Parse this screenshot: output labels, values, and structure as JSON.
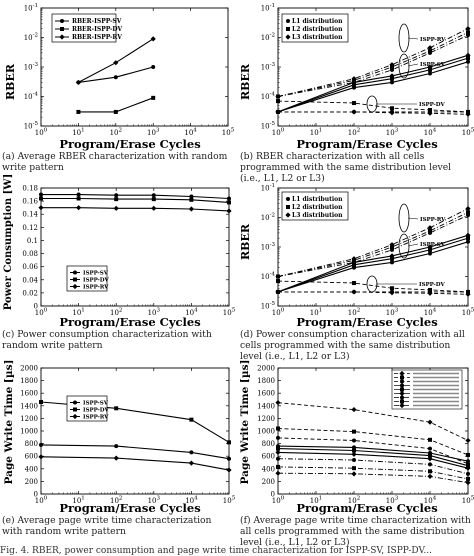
{
  "chart_data": [
    {
      "id": "a",
      "type": "line",
      "xscale": "log",
      "yscale": "log",
      "xlim": [
        1,
        100000
      ],
      "ylim": [
        1e-05,
        0.1
      ],
      "xticks": [
        "10^0",
        "10^1",
        "10^2",
        "10^3",
        "10^4",
        "10^5"
      ],
      "yticks": [
        "10^-5",
        "10^-4",
        "10^-3",
        "10^-2",
        "10^-1"
      ],
      "ylabel": "RBER",
      "xlabel": "Program/Erase Cycles",
      "legend": [
        "RBER-ISPP-SV",
        "RBER-ISPP-DV",
        "RBER-ISPP-RV"
      ],
      "legend_position": "top-left",
      "series": [
        {
          "name": "RBER-ISPP-SV",
          "marker": "circle",
          "x": [
            10,
            100,
            1000
          ],
          "y": [
            0.0003,
            0.00045,
            0.001
          ]
        },
        {
          "name": "RBER-ISPP-DV",
          "marker": "square",
          "x": [
            10,
            100,
            1000
          ],
          "y": [
            3e-05,
            3e-05,
            9e-05
          ]
        },
        {
          "name": "RBER-ISPP-RV",
          "marker": "diamond",
          "x": [
            10,
            100,
            1000
          ],
          "y": [
            0.0003,
            0.0014,
            0.009
          ]
        }
      ],
      "caption": "(a) Average RBER characterization with random write pattern"
    },
    {
      "id": "b",
      "type": "line",
      "xscale": "log",
      "yscale": "log",
      "xlim": [
        1,
        100000
      ],
      "ylim": [
        1e-05,
        0.1
      ],
      "xticks": [
        "10^0",
        "10^1",
        "10^2",
        "10^3",
        "10^4",
        "10^5"
      ],
      "yticks": [
        "10^-5",
        "10^-4",
        "10^-3",
        "10^-2",
        "10^-1"
      ],
      "ylabel": "RBER",
      "xlabel": "Program/Erase Cycles",
      "legend": [
        "L1 distribution",
        "L2 distribution",
        "L3 distribution"
      ],
      "legend_position": "top-left",
      "annotations": [
        "ISPP-RV",
        "ISPP-SV",
        "ISPP-DV"
      ],
      "series": [
        {
          "name": "L1 distribution",
          "group": "ISPP-RV",
          "style": "dashdot",
          "marker": "circle",
          "x": [
            1,
            100,
            1000,
            10000,
            100000
          ],
          "y": [
            0.0001,
            0.0003,
            0.0008,
            0.003,
            0.012
          ]
        },
        {
          "name": "L2 distribution",
          "group": "ISPP-RV",
          "style": "dashdot",
          "marker": "square",
          "x": [
            1,
            100,
            1000,
            10000,
            100000
          ],
          "y": [
            0.0001,
            0.00035,
            0.001,
            0.0035,
            0.015
          ]
        },
        {
          "name": "L3 distribution",
          "group": "ISPP-RV",
          "style": "dashdot",
          "marker": "diamond",
          "x": [
            1,
            100,
            1000,
            10000,
            100000
          ],
          "y": [
            0.0001,
            0.0004,
            0.0012,
            0.0045,
            0.02
          ]
        },
        {
          "name": "L1 distribution",
          "group": "ISPP-SV",
          "style": "solid",
          "marker": "circle",
          "x": [
            1,
            100,
            1000,
            10000,
            100000
          ],
          "y": [
            3e-05,
            0.0002,
            0.0003,
            0.0006,
            0.0015
          ]
        },
        {
          "name": "L2 distribution",
          "group": "ISPP-SV",
          "style": "solid",
          "marker": "square",
          "x": [
            1,
            100,
            1000,
            10000,
            100000
          ],
          "y": [
            3e-05,
            0.00025,
            0.0004,
            0.0008,
            0.002
          ]
        },
        {
          "name": "L3 distribution",
          "group": "ISPP-SV",
          "style": "solid",
          "marker": "diamond",
          "x": [
            1,
            100,
            1000,
            10000,
            100000
          ],
          "y": [
            3e-05,
            0.0003,
            0.0005,
            0.001,
            0.0025
          ]
        },
        {
          "name": "L1 distribution",
          "group": "ISPP-DV",
          "style": "dashed",
          "marker": "circle",
          "x": [
            1,
            100,
            1000,
            10000,
            100000
          ],
          "y": [
            3e-05,
            3e-05,
            3e-05,
            3e-05,
            3e-05
          ]
        },
        {
          "name": "L2 distribution",
          "group": "ISPP-DV",
          "style": "dashed",
          "marker": "square",
          "x": [
            1,
            100,
            1000,
            10000,
            100000
          ],
          "y": [
            7e-05,
            6e-05,
            4e-05,
            3.5e-05,
            3e-05
          ]
        },
        {
          "name": "L3 distribution",
          "group": "ISPP-DV",
          "style": "dashed",
          "marker": "diamond",
          "x": [
            1,
            100,
            1000,
            10000,
            100000
          ],
          "y": [
            3e-05,
            3e-05,
            2.8e-05,
            2.7e-05,
            2.5e-05
          ]
        }
      ],
      "caption": "(b) RBER characterization with all cells programmed with the same distribution level (i.e., L1, L2 or L3)"
    },
    {
      "id": "c",
      "type": "line",
      "xscale": "log",
      "yscale": "linear",
      "xlim": [
        1,
        100000
      ],
      "ylim": [
        0,
        0.18
      ],
      "xticks": [
        "10^0",
        "10^1",
        "10^2",
        "10^3",
        "10^4",
        "10^5"
      ],
      "yticks": [
        "0",
        "0.02",
        "0.04",
        "0.06",
        "0.08",
        "0.1",
        "0.12",
        "0.14",
        "0.16",
        "0.18"
      ],
      "ylabel": "Power Consumption [W]",
      "xlabel": "Program/Erase Cycles",
      "legend": [
        "ISPP-SV",
        "ISPP-DV",
        "ISPP-RV"
      ],
      "legend_position": "bottom-left",
      "series": [
        {
          "name": "ISPP-SV",
          "marker": "circle",
          "x": [
            1,
            10,
            100,
            1000,
            10000,
            100000
          ],
          "y": [
            0.17,
            0.17,
            0.169,
            0.169,
            0.167,
            0.164
          ]
        },
        {
          "name": "ISPP-DV",
          "marker": "square",
          "x": [
            1,
            10,
            100,
            1000,
            10000,
            100000
          ],
          "y": [
            0.164,
            0.164,
            0.163,
            0.163,
            0.162,
            0.158
          ]
        },
        {
          "name": "ISPP-RV",
          "marker": "diamond",
          "x": [
            1,
            10,
            100,
            1000,
            10000,
            100000
          ],
          "y": [
            0.15,
            0.15,
            0.149,
            0.149,
            0.148,
            0.145
          ]
        }
      ],
      "caption": "(c) Power consumption characterization with random write pattern"
    },
    {
      "id": "d",
      "type": "line",
      "xscale": "log",
      "yscale": "log",
      "xlim": [
        1,
        100000
      ],
      "ylim": [
        1e-05,
        0.1
      ],
      "xticks": [
        "10^0",
        "10^1",
        "10^2",
        "10^3",
        "10^4",
        "10^5"
      ],
      "yticks": [
        "10^-5",
        "10^-4",
        "10^-3",
        "10^-2",
        "10^-1"
      ],
      "ylabel": "RBER",
      "xlabel": "Program/Erase Cycles",
      "legend": [
        "L1 distribution",
        "L2 distribution",
        "L3 distribution"
      ],
      "legend_position": "top-left",
      "annotations": [
        "ISPP-RV",
        "ISPP-SV",
        "ISPP-DV"
      ],
      "series": [
        {
          "name": "L1 distribution",
          "group": "ISPP-RV",
          "style": "dashdot",
          "marker": "circle",
          "x": [
            1,
            100,
            1000,
            10000,
            100000
          ],
          "y": [
            0.0001,
            0.0003,
            0.0008,
            0.003,
            0.012
          ]
        },
        {
          "name": "L2 distribution",
          "group": "ISPP-RV",
          "style": "dashdot",
          "marker": "square",
          "x": [
            1,
            100,
            1000,
            10000,
            100000
          ],
          "y": [
            0.0001,
            0.00035,
            0.001,
            0.0035,
            0.015
          ]
        },
        {
          "name": "L3 distribution",
          "group": "ISPP-RV",
          "style": "dashdot",
          "marker": "diamond",
          "x": [
            1,
            100,
            1000,
            10000,
            100000
          ],
          "y": [
            0.0001,
            0.0004,
            0.0012,
            0.0045,
            0.02
          ]
        },
        {
          "name": "L1 distribution",
          "group": "ISPP-SV",
          "style": "solid",
          "marker": "circle",
          "x": [
            1,
            100,
            1000,
            10000,
            100000
          ],
          "y": [
            3e-05,
            0.0002,
            0.0003,
            0.0006,
            0.0015
          ]
        },
        {
          "name": "L2 distribution",
          "group": "ISPP-SV",
          "style": "solid",
          "marker": "square",
          "x": [
            1,
            100,
            1000,
            10000,
            100000
          ],
          "y": [
            3e-05,
            0.00025,
            0.0004,
            0.0008,
            0.002
          ]
        },
        {
          "name": "L3 distribution",
          "group": "ISPP-SV",
          "style": "solid",
          "marker": "diamond",
          "x": [
            1,
            100,
            1000,
            10000,
            100000
          ],
          "y": [
            3e-05,
            0.0003,
            0.0005,
            0.001,
            0.0025
          ]
        },
        {
          "name": "L1 distribution",
          "group": "ISPP-DV",
          "style": "dashed",
          "marker": "circle",
          "x": [
            1,
            100,
            1000,
            10000,
            100000
          ],
          "y": [
            3e-05,
            3e-05,
            3e-05,
            3e-05,
            3e-05
          ]
        },
        {
          "name": "L2 distribution",
          "group": "ISPP-DV",
          "style": "dashed",
          "marker": "square",
          "x": [
            1,
            100,
            1000,
            10000,
            100000
          ],
          "y": [
            7e-05,
            6e-05,
            4e-05,
            3.5e-05,
            3e-05
          ]
        },
        {
          "name": "L3 distribution",
          "group": "ISPP-DV",
          "style": "dashed",
          "marker": "diamond",
          "x": [
            1,
            100,
            1000,
            10000,
            100000
          ],
          "y": [
            3e-05,
            3e-05,
            2.8e-05,
            2.7e-05,
            2.5e-05
          ]
        }
      ],
      "caption": "(d) Power consumption characterization with all cells programmed with the same distribution level (i.e., L1, L2 or L3)"
    },
    {
      "id": "e",
      "type": "line",
      "xscale": "log",
      "yscale": "linear",
      "xlim": [
        1,
        100000
      ],
      "ylim": [
        0,
        2000
      ],
      "xticks": [
        "10^0",
        "10^1",
        "10^2",
        "10^3",
        "10^4",
        "10^5"
      ],
      "yticks": [
        "0",
        "200",
        "400",
        "600",
        "800",
        "1000",
        "1200",
        "1400",
        "1600",
        "1800",
        "2000"
      ],
      "ylabel": "Page Write Time [µs]",
      "xlabel": "Program/Erase Cycles",
      "legend": [
        "ISPP-SV",
        "ISPP-DV",
        "ISPP-RV"
      ],
      "legend_position": "middle-left",
      "series": [
        {
          "name": "ISPP-SV",
          "marker": "circle",
          "x": [
            1,
            100,
            10000,
            100000
          ],
          "y": [
            780,
            760,
            660,
            560
          ]
        },
        {
          "name": "ISPP-DV",
          "marker": "square",
          "x": [
            1,
            100,
            10000,
            100000
          ],
          "y": [
            1460,
            1360,
            1180,
            820
          ]
        },
        {
          "name": "ISPP-RV",
          "marker": "diamond",
          "x": [
            1,
            100,
            10000,
            100000
          ],
          "y": [
            590,
            570,
            490,
            380
          ]
        }
      ],
      "caption": "(e) Average page write time characterization with random write pattern"
    },
    {
      "id": "f",
      "type": "line",
      "xscale": "log",
      "yscale": "linear",
      "xlim": [
        1,
        100000
      ],
      "ylim": [
        0,
        2000
      ],
      "xticks": [
        "10^0",
        "10^1",
        "10^2",
        "10^3",
        "10^4",
        "10^5"
      ],
      "yticks": [
        "0",
        "200",
        "400",
        "600",
        "800",
        "1000",
        "1200",
        "1400",
        "1600",
        "1800",
        "2000"
      ],
      "ylabel": "Page Write Time [µs]",
      "xlabel": "Program/Erase Cycles",
      "legend_position": "top-right",
      "series": [
        {
          "style": "dashed",
          "marker": "diamond",
          "x": [
            1,
            100,
            10000,
            100000
          ],
          "y": [
            1450,
            1340,
            1140,
            850
          ]
        },
        {
          "style": "dashed",
          "marker": "square",
          "x": [
            1,
            100,
            10000,
            100000
          ],
          "y": [
            1040,
            990,
            860,
            620
          ]
        },
        {
          "style": "dashed",
          "marker": "circle",
          "x": [
            1,
            100,
            10000,
            100000
          ],
          "y": [
            890,
            850,
            720,
            480
          ]
        },
        {
          "style": "solid",
          "marker": "circle",
          "x": [
            1,
            100,
            10000,
            100000
          ],
          "y": [
            760,
            740,
            650,
            520
          ]
        },
        {
          "style": "solid",
          "marker": "square",
          "x": [
            1,
            100,
            10000,
            100000
          ],
          "y": [
            720,
            690,
            610,
            450
          ]
        },
        {
          "style": "solid",
          "marker": "diamond",
          "x": [
            1,
            100,
            10000,
            100000
          ],
          "y": [
            660,
            630,
            560,
            410
          ]
        },
        {
          "style": "dashdot",
          "marker": "circle",
          "x": [
            1,
            100,
            10000,
            100000
          ],
          "y": [
            560,
            540,
            470,
            320
          ]
        },
        {
          "style": "dashdot",
          "marker": "square",
          "x": [
            1,
            100,
            10000,
            100000
          ],
          "y": [
            430,
            410,
            360,
            240
          ]
        },
        {
          "style": "dashdot",
          "marker": "diamond",
          "x": [
            1,
            100,
            10000,
            100000
          ],
          "y": [
            330,
            320,
            280,
            180
          ]
        }
      ],
      "caption": "(f) Average page write time characterization with all cells programmed with the same distribution level (i.e., L1, L2 or L3)"
    }
  ],
  "footer": "Fig. 4. RBER, power consumption and page write time characterization for ISPP-SV, ISPP-DV..."
}
